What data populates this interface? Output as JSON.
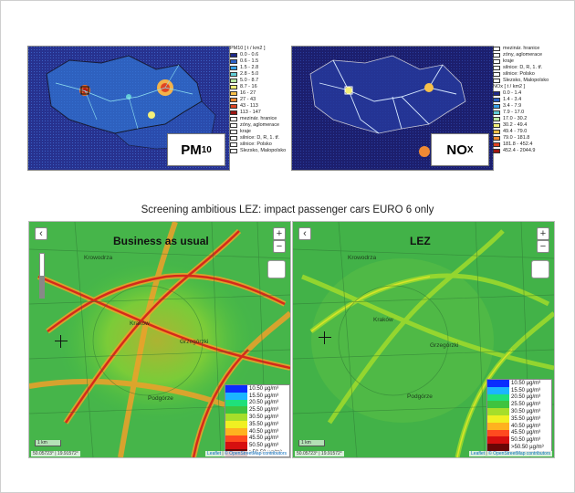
{
  "pm_map": {
    "label_main": "PM",
    "label_sub": "10",
    "legend_header": "PM10 [ t / km2 ]",
    "legend": [
      {
        "label": "0.0 - 0.6",
        "color": "#1f2a8a"
      },
      {
        "label": "0.6 - 1.5",
        "color": "#2c62c8"
      },
      {
        "label": "1.5 - 2.8",
        "color": "#3aa0e6"
      },
      {
        "label": "2.8 - 5.0",
        "color": "#62cdd6"
      },
      {
        "label": "5.0 - 8.7",
        "color": "#b9e9a3"
      },
      {
        "label": "8.7 - 16",
        "color": "#f3ef79"
      },
      {
        "label": "16 - 27",
        "color": "#f7c04a"
      },
      {
        "label": "27 - 43",
        "color": "#f08a34"
      },
      {
        "label": "43 - 113",
        "color": "#e04523"
      },
      {
        "label": "113 - 147",
        "color": "#9e1713"
      }
    ],
    "boundaries": [
      "mezinár. hranice",
      "zóny, aglomerace",
      "kraje",
      "silnice: D, R, 1. tř.",
      "silnice: Polsko",
      "Slezsko, Malopolsko"
    ]
  },
  "nox_map": {
    "label_main": "NO",
    "label_sub": "X",
    "boundaries": [
      "mezinár. hranice",
      "zóny, aglomerace",
      "kraje",
      "silnice: D, R, 1. tř.",
      "silnice: Polsko",
      "Slezsko, Malopolsko"
    ],
    "legend_header": "NOx [ t / km2 ]",
    "legend": [
      {
        "label": "0.0 - 1.4",
        "color": "#1f2a8a"
      },
      {
        "label": "1.4 - 3.4",
        "color": "#2c62c8"
      },
      {
        "label": "3.4 - 7.9",
        "color": "#3aa0e6"
      },
      {
        "label": "7.9 - 17.0",
        "color": "#62cdd6"
      },
      {
        "label": "17.0 - 30.2",
        "color": "#b9e9a3"
      },
      {
        "label": "30.2 - 49.4",
        "color": "#f3ef79"
      },
      {
        "label": "49.4 - 79.0",
        "color": "#f7c04a"
      },
      {
        "label": "79.0 - 181.8",
        "color": "#f08a34"
      },
      {
        "label": "181.8 - 452.4",
        "color": "#e04523"
      },
      {
        "label": "452.4 - 2044.9",
        "color": "#9e1713"
      }
    ]
  },
  "section_title": "Screening ambitious LEZ: impact passenger cars EURO 6 only",
  "bau_map": {
    "title": "Business as usual",
    "zoom_in": "+",
    "zoom_out": "−",
    "back": "‹",
    "scale": "1 km",
    "coords": "50.05723° | 19.91572°",
    "attribution_leaflet": "Leaflet",
    "attribution_osm": "© OpenStreetMap contributors",
    "places": [
      "Krowodrza",
      "Kraków",
      "Grzegórzki",
      "Podgórze"
    ]
  },
  "lez_map": {
    "title": "LEZ",
    "zoom_in": "+",
    "zoom_out": "−",
    "back": "‹",
    "scale": "1 km",
    "coords": "50.05723° | 19.91572°",
    "attribution_leaflet": "Leaflet",
    "attribution_osm": "© OpenStreetMap contributors",
    "places": [
      "Krowodrza",
      "Kraków",
      "Grzegórzki",
      "Podgórze"
    ]
  },
  "concentration_legend": [
    {
      "label": "10.50 µg/m³",
      "color": "#0a2dff"
    },
    {
      "label": "15.50 µg/m³",
      "color": "#1bb5ff"
    },
    {
      "label": "20.50 µg/m³",
      "color": "#1fe07a"
    },
    {
      "label": "25.50 µg/m³",
      "color": "#3ec33f"
    },
    {
      "label": "30.50 µg/m³",
      "color": "#a6de2a"
    },
    {
      "label": "35.50 µg/m³",
      "color": "#f0f022"
    },
    {
      "label": "40.50 µg/m³",
      "color": "#ffb21f"
    },
    {
      "label": "45.50 µg/m³",
      "color": "#ff4a1f"
    },
    {
      "label": "50.50 µg/m³",
      "color": "#d60f0f"
    },
    {
      "label": ">50.50 µg/m³",
      "color": "#6a0606"
    }
  ]
}
